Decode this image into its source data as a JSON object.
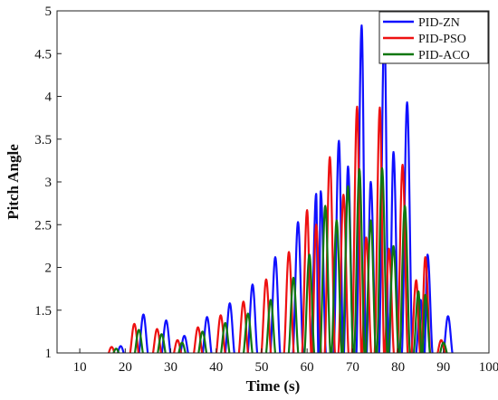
{
  "chart_data": {
    "type": "line",
    "title": "",
    "xlabel": "Time (s)",
    "ylabel": "Pitch Angle",
    "xlim": [
      5,
      100
    ],
    "ylim": [
      1,
      5
    ],
    "xticks": [
      10,
      20,
      30,
      40,
      50,
      60,
      70,
      80,
      90,
      100
    ],
    "yticks": [
      1,
      1.5,
      2,
      2.5,
      3,
      3.5,
      4,
      4.5,
      5
    ],
    "ytick_labels": [
      "1",
      "1.5",
      "2",
      "2.5",
      "3",
      "3.5",
      "4",
      "4.5",
      "5"
    ],
    "grid": false,
    "legend_position": "top-right",
    "series": [
      {
        "name": "PID-ZN",
        "color": "#1010ff",
        "peaks": [
          [
            19,
            1.08
          ],
          [
            24,
            1.45
          ],
          [
            29,
            1.38
          ],
          [
            33,
            1.2
          ],
          [
            38,
            1.42
          ],
          [
            43,
            1.58
          ],
          [
            48,
            1.8
          ],
          [
            53,
            2.12
          ],
          [
            58,
            2.53
          ],
          [
            62,
            2.86
          ],
          [
            63,
            2.89
          ],
          [
            67,
            3.48
          ],
          [
            69,
            3.18
          ],
          [
            72,
            4.83
          ],
          [
            74,
            3.0
          ],
          [
            77,
            4.83
          ],
          [
            79,
            3.35
          ],
          [
            82,
            3.93
          ],
          [
            85,
            1.62
          ],
          [
            86.5,
            2.15
          ],
          [
            91,
            1.43
          ]
        ]
      },
      {
        "name": "PID-PSO",
        "color": "#ee1111",
        "peaks": [
          [
            17,
            1.07
          ],
          [
            22,
            1.34
          ],
          [
            27,
            1.28
          ],
          [
            31.5,
            1.15
          ],
          [
            36,
            1.3
          ],
          [
            41,
            1.44
          ],
          [
            46,
            1.6
          ],
          [
            51,
            1.86
          ],
          [
            56,
            2.18
          ],
          [
            60,
            2.67
          ],
          [
            62,
            2.5
          ],
          [
            65,
            3.29
          ],
          [
            68,
            2.85
          ],
          [
            71,
            3.88
          ],
          [
            73,
            2.35
          ],
          [
            76,
            3.87
          ],
          [
            78,
            2.22
          ],
          [
            81,
            3.2
          ],
          [
            84,
            1.85
          ],
          [
            86,
            2.12
          ],
          [
            89.5,
            1.15
          ]
        ]
      },
      {
        "name": "PID-ACO",
        "color": "#117711",
        "peaks": [
          [
            18,
            1.05
          ],
          [
            23,
            1.27
          ],
          [
            28,
            1.22
          ],
          [
            32.5,
            1.12
          ],
          [
            37,
            1.25
          ],
          [
            42,
            1.35
          ],
          [
            47,
            1.46
          ],
          [
            52,
            1.62
          ],
          [
            57,
            1.88
          ],
          [
            60.5,
            2.15
          ],
          [
            64,
            2.72
          ],
          [
            66.5,
            2.55
          ],
          [
            69,
            2.95
          ],
          [
            71.5,
            3.15
          ],
          [
            74,
            2.55
          ],
          [
            76.5,
            3.16
          ],
          [
            79,
            2.25
          ],
          [
            81.5,
            2.72
          ],
          [
            84.5,
            1.72
          ],
          [
            86,
            1.68
          ],
          [
            90,
            1.12
          ]
        ]
      }
    ]
  }
}
